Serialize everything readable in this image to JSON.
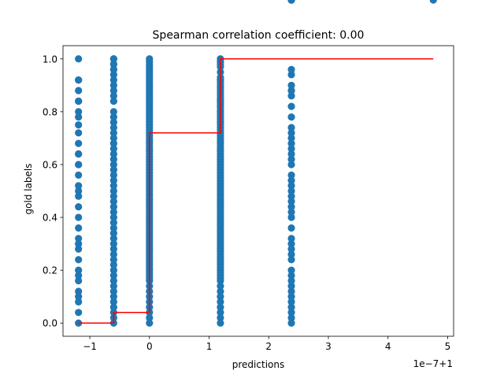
{
  "chart_data": {
    "type": "scatter",
    "title": "Spearman correlation coefficient: 0.00",
    "xlabel": "predictions",
    "ylabel": "gold labels",
    "x_offset_label": "1e−7+1",
    "xlim": [
      -1.45,
      5.1
    ],
    "ylim": [
      -0.05,
      1.05
    ],
    "x_ticks": [
      -1,
      0,
      1,
      2,
      3,
      4,
      5
    ],
    "x_tick_labels": [
      "−1",
      "0",
      "1",
      "2",
      "3",
      "4",
      "5"
    ],
    "y_ticks": [
      0.0,
      0.2,
      0.4,
      0.6,
      0.8,
      1.0
    ],
    "y_tick_labels": [
      "0.0",
      "0.2",
      "0.4",
      "0.6",
      "0.8",
      "1.0"
    ],
    "grid": false,
    "colors": {
      "points": "#1f77b4",
      "step_line": "#ff0000"
    },
    "series": [
      {
        "type": "scatter",
        "points_x": [
          -1.19,
          -1.19,
          -1.19,
          -1.19,
          -1.19,
          -1.19,
          -1.19,
          -1.19,
          -1.19,
          -1.19,
          -1.19,
          -1.19,
          -1.19,
          -1.19,
          -1.19,
          -1.19,
          -1.19,
          -1.19,
          -1.19,
          -1.19,
          -1.19,
          -1.19,
          -1.19,
          -1.19,
          -1.19,
          -1.19,
          -1.19,
          -1.19,
          -1.19,
          -1.19,
          -1.19,
          -1.19,
          -1.19,
          -1.19,
          -0.6,
          -0.6,
          -0.6,
          -0.6,
          -0.6,
          -0.6,
          -0.6,
          -0.6,
          -0.6,
          -0.6,
          -0.6,
          -0.6,
          -0.6,
          -0.6,
          -0.6,
          -0.6,
          -0.6,
          -0.6,
          -0.6,
          -0.6,
          -0.6,
          -0.6,
          -0.6,
          -0.6,
          -0.6,
          -0.6,
          -0.6,
          -0.6,
          -0.6,
          -0.6,
          -0.6,
          -0.6,
          -0.6,
          -0.6,
          -0.6,
          -0.6,
          -0.6,
          -0.6,
          -0.6,
          -0.6,
          -0.6,
          -0.6,
          -0.6,
          -0.6,
          -0.6,
          -0.6,
          -0.6,
          -0.6,
          -0.6,
          -0.6,
          -0.6,
          -0.6,
          -0.6,
          0.0,
          0.0,
          0.0,
          0.0,
          0.0,
          0.0,
          0.0,
          0.0,
          0.0,
          0.0,
          0.0,
          0.0,
          0.0,
          0.0,
          0.0,
          0.0,
          0.0,
          0.0,
          0.0,
          0.0,
          0.0,
          0.0,
          0.0,
          0.0,
          0.0,
          0.0,
          0.0,
          0.0,
          0.0,
          0.0,
          0.0,
          0.0,
          0.0,
          0.0,
          0.0,
          0.0,
          0.0,
          0.0,
          0.0,
          0.0,
          0.0,
          0.0,
          0.0,
          0.0,
          0.0,
          0.0,
          0.0,
          0.0,
          0.0,
          0.0,
          0.0,
          0.0,
          0.0,
          0.0,
          0.0,
          0.0,
          0.0,
          0.0,
          0.0,
          0.0,
          0.0,
          0.0,
          0.0,
          0.0,
          0.0,
          0.0,
          0.0,
          0.0,
          0.0,
          0.0,
          0.0,
          0.0,
          0.0,
          0.0,
          0.0,
          0.0,
          0.0,
          0.0,
          0.0,
          0.0,
          0.0,
          0.0,
          0.0,
          0.0,
          0.0,
          0.0,
          0.0,
          0.0,
          0.0,
          0.0,
          0.0,
          0.0,
          0.0,
          1.19,
          1.19,
          1.19,
          1.19,
          1.19,
          1.19,
          1.19,
          1.19,
          1.19,
          1.19,
          1.19,
          1.19,
          1.19,
          1.19,
          1.19,
          1.19,
          1.19,
          1.19,
          1.19,
          1.19,
          1.19,
          1.19,
          1.19,
          1.19,
          1.19,
          1.19,
          1.19,
          1.19,
          1.19,
          1.19,
          1.19,
          1.19,
          1.19,
          1.19,
          1.19,
          1.19,
          1.19,
          1.19,
          1.19,
          1.19,
          1.19,
          1.19,
          1.19,
          1.19,
          1.19,
          1.19,
          1.19,
          1.19,
          1.19,
          1.19,
          1.19,
          1.19,
          1.19,
          1.19,
          1.19,
          1.19,
          1.19,
          1.19,
          1.19,
          1.19,
          1.19,
          1.19,
          1.19,
          1.19,
          1.19,
          1.19,
          1.19,
          1.19,
          1.19,
          1.19,
          1.19,
          1.19,
          1.19,
          1.19,
          1.19,
          1.19,
          1.19,
          1.19,
          1.19,
          1.19,
          1.19,
          1.19,
          1.19,
          1.19,
          1.19,
          1.19,
          1.19,
          1.19,
          1.19,
          1.19,
          1.19,
          1.19,
          1.19,
          1.19,
          1.19,
          2.38,
          2.38,
          2.38,
          2.38,
          2.38,
          2.38,
          2.38,
          2.38,
          2.38,
          2.38,
          2.38,
          2.38,
          2.38,
          2.38,
          2.38,
          2.38,
          2.38,
          2.38,
          2.38,
          2.38,
          2.38,
          2.38,
          2.38,
          2.38,
          2.38,
          2.38,
          2.38,
          2.38,
          2.38,
          2.38,
          2.38,
          2.38,
          2.38,
          2.38,
          2.38,
          2.38,
          2.38,
          2.38,
          2.38,
          2.38,
          2.38,
          2.38,
          2.38,
          2.38,
          2.38,
          2.38,
          2.38,
          4.76
        ],
        "points_y": [
          1.0,
          0.92,
          0.88,
          0.84,
          0.8,
          0.75,
          0.72,
          0.68,
          0.64,
          0.6,
          0.56,
          0.52,
          0.5,
          0.48,
          0.4,
          0.32,
          0.28,
          0.2,
          0.18,
          0.16,
          0.12,
          0.1,
          0.08,
          0.04,
          0.0,
          0.36,
          0.44,
          0.24,
          0.6,
          0.92,
          0.84,
          0.3,
          0.78,
          0.64,
          1.0,
          0.96,
          0.92,
          0.9,
          0.88,
          0.84,
          0.8,
          0.76,
          0.74,
          0.72,
          0.7,
          0.68,
          0.66,
          0.64,
          0.62,
          0.6,
          0.58,
          0.56,
          0.54,
          0.52,
          0.5,
          0.48,
          0.46,
          0.44,
          0.42,
          0.4,
          0.38,
          0.36,
          0.34,
          0.32,
          0.3,
          0.28,
          0.26,
          0.24,
          0.22,
          0.2,
          0.18,
          0.16,
          0.14,
          0.12,
          0.1,
          0.08,
          0.06,
          0.04,
          0.02,
          0.0,
          0.78,
          0.86,
          0.98,
          1.0,
          0.98,
          0.96,
          0.94,
          0.92,
          0.9,
          0.88,
          0.86,
          0.84,
          0.82,
          0.8,
          0.78,
          0.76,
          0.74,
          0.72,
          0.7,
          0.68,
          0.66,
          0.64,
          0.62,
          0.6,
          0.58,
          0.56,
          0.54,
          0.52,
          0.5,
          0.48,
          0.46,
          0.44,
          0.42,
          0.4,
          0.38,
          0.36,
          0.34,
          0.32,
          0.3,
          0.28,
          0.26,
          0.24,
          0.22,
          0.2,
          0.18,
          0.16,
          0.14,
          0.12,
          0.1,
          0.08,
          0.06,
          0.04,
          0.02,
          0.0,
          0.99,
          0.97,
          0.95,
          0.93,
          0.91,
          0.89,
          0.87,
          0.85,
          0.83,
          0.81,
          0.79,
          0.77,
          0.75,
          0.73,
          0.71,
          0.69,
          0.67,
          0.65,
          0.63,
          0.61,
          0.59,
          0.57,
          0.55,
          0.53,
          0.51,
          0.49,
          0.47,
          0.45,
          0.43,
          0.41,
          0.39,
          0.37,
          0.35,
          0.33,
          0.31,
          0.29,
          0.27,
          0.25,
          0.23,
          0.21,
          0.19,
          0.17,
          1.0,
          0.98,
          0.96,
          0.94,
          0.92,
          0.9,
          0.88,
          0.86,
          0.84,
          0.82,
          0.8,
          0.78,
          0.76,
          0.74,
          0.72,
          0.7,
          0.68,
          0.66,
          0.64,
          0.62,
          0.6,
          0.58,
          0.56,
          0.54,
          0.52,
          0.5,
          0.48,
          0.46,
          0.44,
          0.42,
          0.4,
          0.38,
          0.36,
          0.34,
          0.32,
          0.3,
          0.28,
          0.26,
          0.24,
          0.22,
          0.2,
          0.18,
          0.16,
          0.14,
          0.12,
          0.1,
          0.08,
          0.06,
          0.04,
          0.02,
          0.0,
          0.99,
          0.97,
          0.95,
          0.93,
          0.91,
          0.89,
          0.87,
          0.85,
          0.83,
          0.81,
          0.79,
          0.77,
          0.75,
          0.73,
          0.71,
          0.69,
          0.67,
          0.65,
          0.63,
          0.61,
          0.59,
          0.57,
          0.55,
          0.53,
          0.51,
          0.49,
          0.47,
          0.45,
          0.43,
          0.41,
          0.39,
          0.37,
          0.35,
          0.33,
          0.31,
          0.29,
          0.27,
          0.25,
          0.23,
          0.21,
          0.19,
          0.17,
          1.0,
          0.98,
          0.92,
          0.84,
          0.8,
          0.76,
          0.74,
          0.72,
          0.7,
          0.6,
          0.56,
          0.52,
          0.5,
          0.48,
          0.44,
          0.4,
          0.3,
          0.28,
          0.24,
          0.2,
          0.16,
          0.12,
          0.08,
          0.04,
          0.02,
          0.0,
          0.36,
          0.32,
          0.26,
          0.18,
          0.14,
          0.1,
          0.06,
          0.64,
          0.66,
          0.68,
          0.78,
          0.82,
          0.86,
          0.88,
          0.9,
          0.94,
          0.96,
          0.62,
          0.54,
          0.46,
          0.42,
          0.88
        ]
      },
      {
        "type": "step-line",
        "x": [
          -1.19,
          -0.6,
          -0.6,
          0.0,
          0.0,
          1.19,
          1.19,
          4.76
        ],
        "y": [
          0.0,
          0.0,
          0.04,
          0.04,
          0.72,
          0.72,
          1.0,
          1.0
        ]
      }
    ]
  }
}
